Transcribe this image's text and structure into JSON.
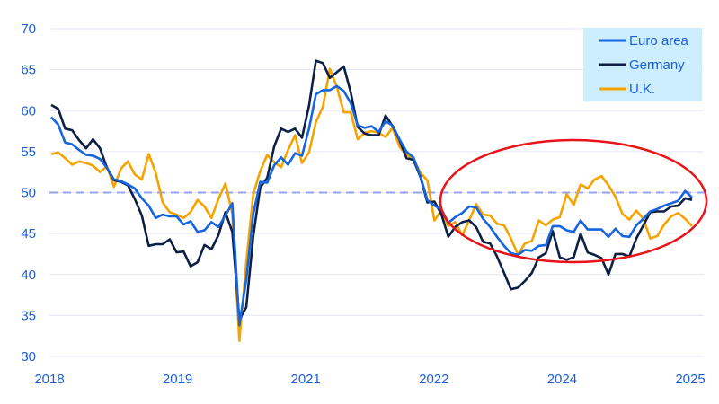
{
  "chart_data": {
    "type": "line",
    "title": "",
    "xlabel": "",
    "ylabel": "",
    "ylim": [
      30,
      70
    ],
    "y_ticks": [
      30,
      35,
      40,
      45,
      50,
      55,
      60,
      65,
      70
    ],
    "x_tick_labels": [
      "2018",
      "2019",
      "2021",
      "2022",
      "2024",
      "2025"
    ],
    "grid": "horizontal",
    "reference_line": {
      "value": 50,
      "style": "dashed",
      "color": "#97a3f0"
    },
    "legend_position": "top-right",
    "annotation": {
      "shape": "ellipse",
      "color": "#e8141a",
      "highlights": "2022-2025"
    },
    "x": [
      "2018-01",
      "2018-02",
      "2018-03",
      "2018-04",
      "2018-05",
      "2018-06",
      "2018-07",
      "2018-08",
      "2018-09",
      "2018-10",
      "2018-11",
      "2018-12",
      "2019-01",
      "2019-02",
      "2019-03",
      "2019-04",
      "2019-05",
      "2019-06",
      "2019-07",
      "2019-08",
      "2019-09",
      "2019-10",
      "2019-11",
      "2019-12",
      "2020-01",
      "2020-02",
      "2020-03",
      "2020-04",
      "2020-05",
      "2020-06",
      "2020-07",
      "2020-08",
      "2020-09",
      "2020-10",
      "2020-11",
      "2020-12",
      "2021-01",
      "2021-02",
      "2021-03",
      "2021-04",
      "2021-05",
      "2021-06",
      "2021-07",
      "2021-08",
      "2021-09",
      "2021-10",
      "2021-11",
      "2021-12",
      "2022-01",
      "2022-02",
      "2022-03",
      "2022-04",
      "2022-05",
      "2022-06",
      "2022-07",
      "2022-08",
      "2022-09",
      "2022-10",
      "2022-11",
      "2022-12",
      "2023-01",
      "2023-02",
      "2023-03",
      "2023-04",
      "2023-05",
      "2023-06",
      "2023-07",
      "2023-08",
      "2023-09",
      "2023-10",
      "2023-11",
      "2023-12",
      "2024-01",
      "2024-02",
      "2024-03",
      "2024-04",
      "2024-05",
      "2024-06",
      "2024-07",
      "2024-08",
      "2024-09",
      "2024-10",
      "2024-11",
      "2024-12",
      "2025-01",
      "2025-02",
      "2025-03",
      "2025-04",
      "2025-05",
      "2025-06",
      "2025-07",
      "2025-08",
      "2025-09"
    ],
    "series": [
      {
        "name": "Euro area",
        "color": "#1565e0",
        "values": [
          59.2,
          58.3,
          56.1,
          55.9,
          55.2,
          54.6,
          54.5,
          54.1,
          53.0,
          51.6,
          51.4,
          51.0,
          50.5,
          49.3,
          48.4,
          46.9,
          47.3,
          47.1,
          47.1,
          46.1,
          46.5,
          45.2,
          45.4,
          46.4,
          45.8,
          47.2,
          48.7,
          33.8,
          39.4,
          47.4,
          51.3,
          51.2,
          53.3,
          54.3,
          53.4,
          54.8,
          54.5,
          57.8,
          62.0,
          62.5,
          62.5,
          63.0,
          62.4,
          60.9,
          58.2,
          57.9,
          58.1,
          57.4,
          58.7,
          58.2,
          56.5,
          55.0,
          54.3,
          52.0,
          49.1,
          48.4,
          48.0,
          46.3,
          47.0,
          47.5,
          48.3,
          48.2,
          46.8,
          45.8,
          44.6,
          43.5,
          42.6,
          42.4,
          43.0,
          42.9,
          43.5,
          43.6,
          45.9,
          45.9,
          45.4,
          45.2,
          46.6,
          45.5,
          45.5,
          45.5,
          44.6,
          45.6,
          44.7,
          44.6,
          46.0,
          46.8,
          47.7,
          48.0,
          48.4,
          48.7,
          49.0,
          50.2,
          49.4
        ]
      },
      {
        "name": "Germany",
        "color": "#0c1f45",
        "values": [
          60.7,
          60.2,
          57.8,
          57.6,
          56.4,
          55.4,
          56.5,
          55.4,
          53.0,
          51.5,
          51.3,
          50.9,
          49.2,
          47.2,
          43.5,
          43.7,
          43.7,
          44.3,
          42.7,
          42.8,
          41.0,
          41.5,
          43.6,
          43.1,
          44.8,
          47.6,
          45.2,
          34.5,
          36.0,
          44.7,
          50.6,
          51.8,
          55.6,
          57.8,
          57.4,
          57.8,
          56.7,
          60.6,
          66.1,
          65.8,
          64.0,
          64.7,
          65.4,
          62.2,
          58.0,
          57.2,
          57.0,
          57.0,
          59.4,
          58.1,
          56.4,
          54.2,
          54.0,
          51.9,
          48.8,
          48.9,
          47.4,
          44.6,
          45.8,
          46.4,
          46.6,
          45.8,
          44.0,
          43.8,
          42.2,
          40.2,
          38.2,
          38.4,
          39.2,
          40.2,
          42.1,
          42.6,
          45.3,
          42.1,
          41.8,
          42.1,
          45.0,
          42.7,
          42.4,
          42.0,
          40.0,
          42.5,
          42.5,
          42.2,
          44.4,
          46.0,
          47.6,
          47.7,
          47.7,
          48.3,
          48.4,
          49.3,
          49.1
        ]
      },
      {
        "name": "U.K.",
        "color": "#f5a300",
        "values": [
          54.7,
          54.9,
          54.2,
          53.4,
          53.8,
          53.6,
          53.3,
          52.5,
          53.2,
          50.7,
          52.9,
          53.8,
          52.2,
          51.6,
          54.7,
          52.4,
          48.8,
          47.6,
          47.3,
          46.9,
          47.6,
          49.1,
          48.3,
          46.9,
          49.2,
          51.1,
          47.4,
          31.9,
          41.5,
          49.8,
          52.6,
          54.6,
          53.7,
          53.1,
          55.2,
          57.0,
          53.6,
          54.9,
          58.6,
          60.5,
          65.1,
          62.9,
          59.8,
          59.8,
          56.5,
          57.3,
          57.5,
          57.3,
          56.8,
          57.9,
          55.6,
          54.6,
          54.1,
          52.4,
          51.5,
          46.6,
          47.8,
          45.9,
          46.4,
          44.8,
          46.6,
          48.6,
          47.3,
          47.2,
          46.2,
          46.0,
          44.4,
          42.4,
          43.8,
          44.1,
          46.6,
          46.0,
          46.7,
          47.0,
          49.8,
          48.5,
          51.0,
          50.5,
          51.6,
          52.0,
          50.9,
          49.5,
          47.4,
          46.7,
          47.8,
          46.8,
          44.4,
          44.7,
          46.1,
          47.1,
          47.5,
          46.8,
          45.9
        ]
      }
    ]
  }
}
